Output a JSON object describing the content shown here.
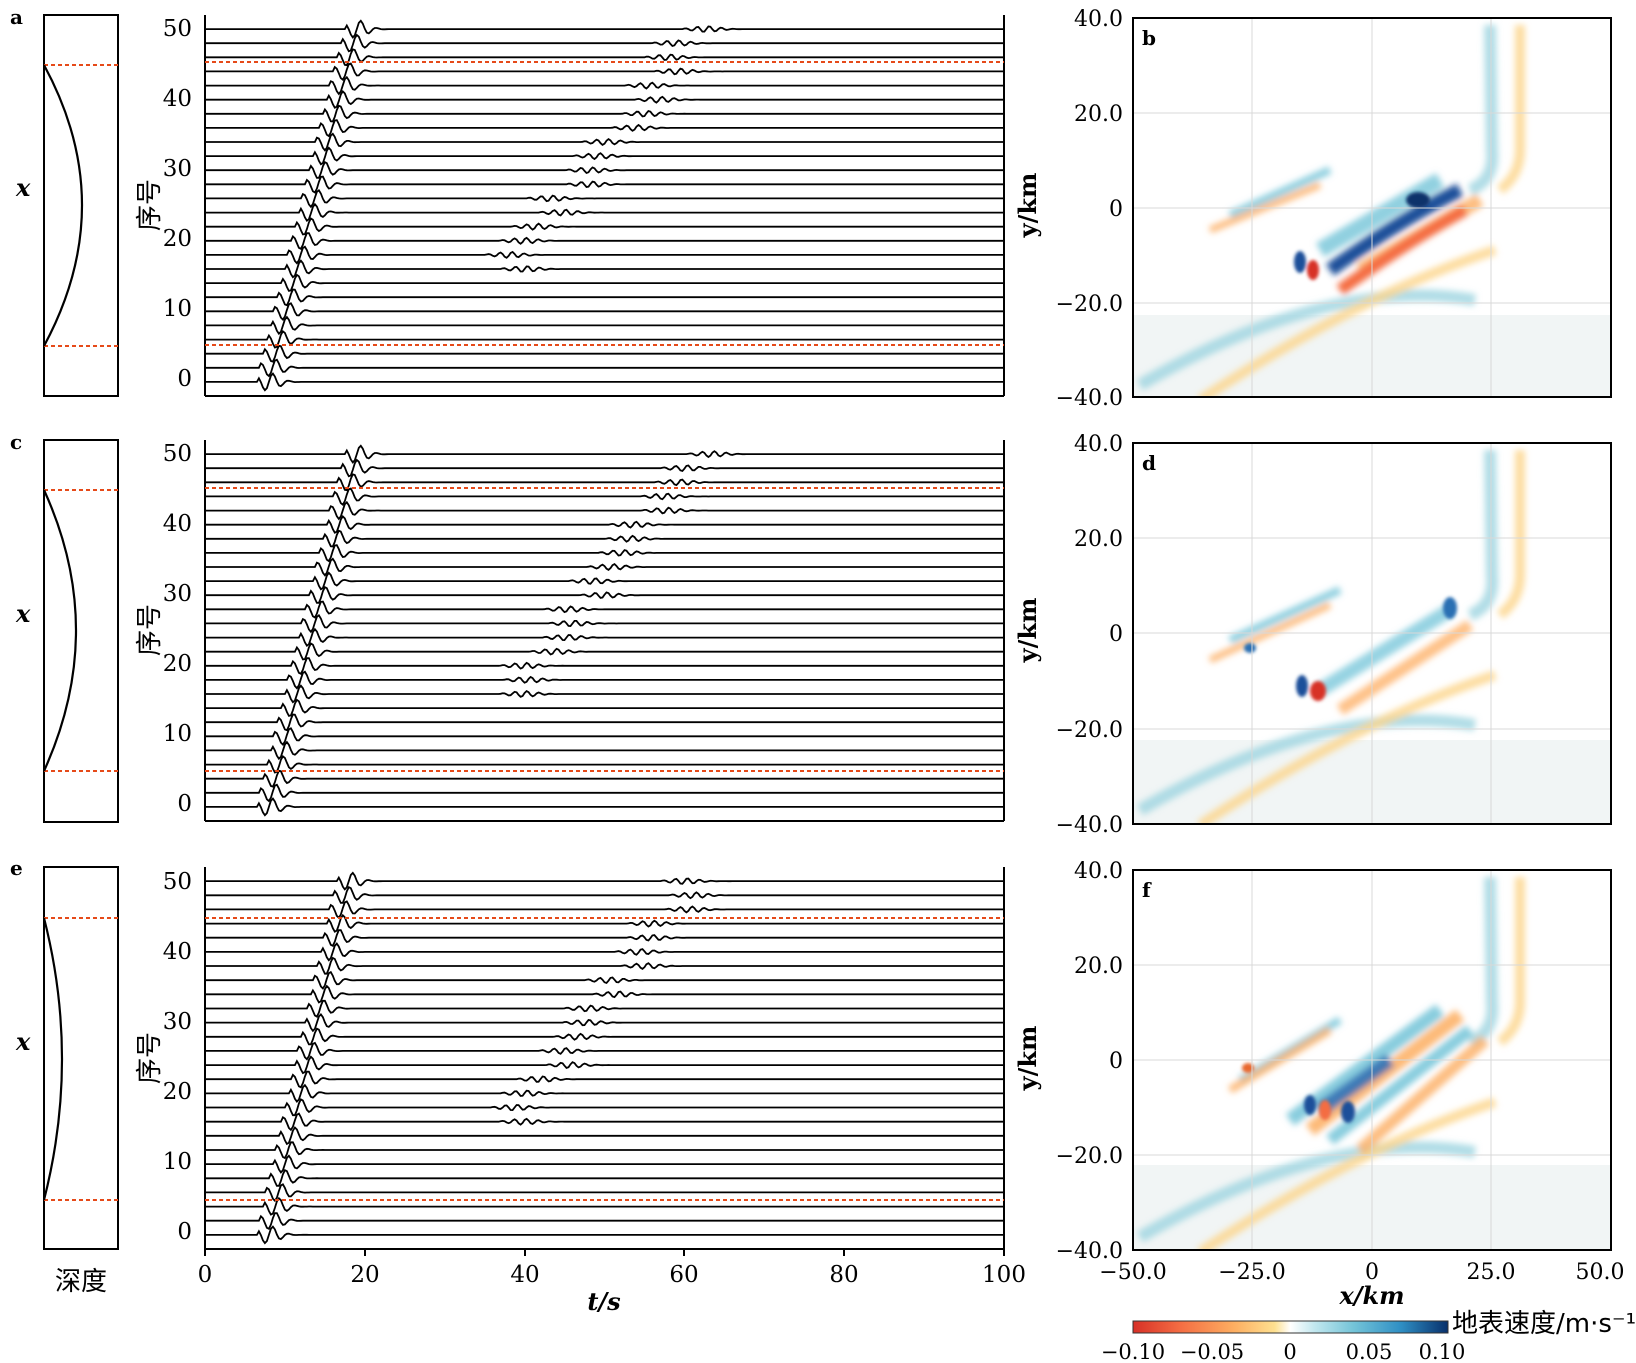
{
  "figure": {
    "rows": [
      {
        "model_label": "a",
        "seismogram": {
          "ylabel": "序号",
          "ytick_labels": [
            "0",
            "10",
            "20",
            "30",
            "40",
            "50"
          ]
        },
        "map_label": "b",
        "map": {
          "ylabel": "y/km",
          "ytick_labels": [
            "40.0",
            "20.0",
            "0",
            "−20.0",
            "−40.0"
          ]
        }
      },
      {
        "model_label": "c",
        "seismogram": {
          "ylabel": "序号",
          "ytick_labels": [
            "0",
            "10",
            "20",
            "30",
            "40",
            "50"
          ]
        },
        "map_label": "d",
        "map": {
          "ylabel": "y/km",
          "ytick_labels": [
            "40.0",
            "20.0",
            "0",
            "−20.0",
            "−40.0"
          ]
        }
      },
      {
        "model_label": "e",
        "seismogram": {
          "ylabel": "序号",
          "ytick_labels": [
            "0",
            "10",
            "20",
            "30",
            "40",
            "50"
          ]
        },
        "map_label": "f",
        "map": {
          "ylabel": "y/km",
          "ytick_labels": [
            "40.0",
            "20.0",
            "0",
            "−20.0",
            "−40.0"
          ]
        }
      }
    ],
    "model_axis_label": "x",
    "model_bottom_label": "深度",
    "seismogram_xlabel": "t/s",
    "seismogram_xtick_labels": [
      "0",
      "20",
      "40",
      "60",
      "80",
      "100"
    ],
    "map_xlabel": "x/km",
    "map_xtick_labels": [
      "−50.0",
      "−25.0",
      "0",
      "25.0",
      "50.0"
    ],
    "colorbar": {
      "label": "地表速度/m·s⁻¹",
      "tick_labels": [
        "−0.10",
        "−0.05",
        "0",
        "0.05",
        "0.10"
      ],
      "colors": [
        "#d73027",
        "#f46d43",
        "#fdae61",
        "#fee090",
        "#ffffff",
        "#bfe6ee",
        "#74c4d8",
        "#2f8fc4",
        "#08306b"
      ]
    },
    "colors": {
      "trace": "#000000",
      "marker_line": "#e64a19",
      "positive": "#2c6fb3",
      "negative": "#e8682f"
    }
  },
  "chart_data": [
    {
      "type": "line",
      "panel": "a",
      "x": {
        "label": "t/s",
        "range": [
          0,
          100
        ],
        "ticks": [
          0,
          20,
          40,
          60,
          80,
          100
        ]
      },
      "y": {
        "label": "序号",
        "range": [
          -2,
          52
        ],
        "ticks": [
          0,
          10,
          20,
          30,
          40,
          50
        ]
      },
      "trace_count": 26,
      "trace_spacing": 2,
      "first_arrival_s": {
        "trace_0": 8,
        "trace_50": 19
      },
      "marker_lines": [
        5,
        45
      ]
    },
    {
      "type": "line",
      "panel": "c",
      "x": {
        "label": "t/s",
        "range": [
          0,
          100
        ],
        "ticks": [
          0,
          20,
          40,
          60,
          80,
          100
        ]
      },
      "y": {
        "label": "序号",
        "range": [
          -2,
          52
        ],
        "ticks": [
          0,
          10,
          20,
          30,
          40,
          50
        ]
      },
      "trace_count": 26,
      "trace_spacing": 2,
      "first_arrival_s": {
        "trace_0": 8,
        "trace_50": 19
      },
      "marker_lines": [
        4,
        45
      ]
    },
    {
      "type": "line",
      "panel": "e",
      "x": {
        "label": "t/s",
        "range": [
          0,
          100
        ],
        "ticks": [
          0,
          20,
          40,
          60,
          80,
          100
        ]
      },
      "y": {
        "label": "序号",
        "range": [
          -2,
          52
        ],
        "ticks": [
          0,
          10,
          20,
          30,
          40,
          50
        ]
      },
      "trace_count": 26,
      "trace_spacing": 2,
      "first_arrival_s": {
        "trace_0": 8,
        "trace_50": 18
      },
      "marker_lines": [
        5,
        45
      ]
    },
    {
      "type": "heatmap",
      "panel": "b",
      "x": {
        "label": "x/km",
        "range": [
          -50,
          50
        ],
        "ticks": [
          -50,
          -25,
          0,
          25,
          50
        ]
      },
      "y": {
        "label": "y/km",
        "range": [
          -40,
          40
        ],
        "ticks": [
          -40,
          -20,
          0,
          20,
          40
        ]
      },
      "value_range": [
        -0.1,
        0.1
      ],
      "grid": true
    },
    {
      "type": "heatmap",
      "panel": "d",
      "x": {
        "label": "x/km",
        "range": [
          -50,
          50
        ],
        "ticks": [
          -50,
          -25,
          0,
          25,
          50
        ]
      },
      "y": {
        "label": "y/km",
        "range": [
          -40,
          40
        ],
        "ticks": [
          -40,
          -20,
          0,
          20,
          40
        ]
      },
      "value_range": [
        -0.1,
        0.1
      ],
      "grid": true
    },
    {
      "type": "heatmap",
      "panel": "f",
      "x": {
        "label": "x/km",
        "range": [
          -50,
          50
        ],
        "ticks": [
          -50,
          -25,
          0,
          25,
          50
        ]
      },
      "y": {
        "label": "y/km",
        "range": [
          -40,
          40
        ],
        "ticks": [
          -40,
          -20,
          0,
          20,
          40
        ]
      },
      "value_range": [
        -0.1,
        0.1
      ],
      "grid": true
    }
  ]
}
